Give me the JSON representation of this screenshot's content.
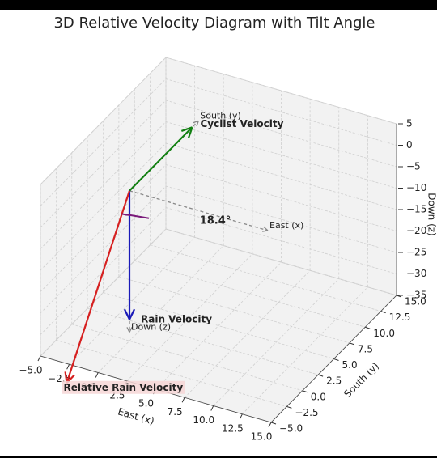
{
  "chart_data": {
    "type": "vector3d",
    "title": "3D Relative Velocity Diagram with Tilt Angle",
    "xlabel": "East (x)",
    "ylabel": "South (y)",
    "zlabel": "Down (z)",
    "xlim": [
      -5,
      15
    ],
    "ylim": [
      -5,
      15
    ],
    "zlim": [
      -35,
      5
    ],
    "xticks": [
      {
        "value": -5,
        "label": "−5.0"
      },
      {
        "value": -2.5,
        "label": "−2.5"
      },
      {
        "value": 0,
        "label": "0.0"
      },
      {
        "value": 2.5,
        "label": "2.5"
      },
      {
        "value": 5,
        "label": "5.0"
      },
      {
        "value": 7.5,
        "label": "7.5"
      },
      {
        "value": 10,
        "label": "10.0"
      },
      {
        "value": 12.5,
        "label": "12.5"
      },
      {
        "value": 15,
        "label": "15.0"
      }
    ],
    "yticks": [
      {
        "value": -5,
        "label": "−5.0"
      },
      {
        "value": -2.5,
        "label": "−2.5"
      },
      {
        "value": 0,
        "label": "0.0"
      },
      {
        "value": 2.5,
        "label": "2.5"
      },
      {
        "value": 5,
        "label": "5.0"
      },
      {
        "value": 7.5,
        "label": "7.5"
      },
      {
        "value": 10,
        "label": "10.0"
      },
      {
        "value": 12.5,
        "label": "12.5"
      },
      {
        "value": 15,
        "label": "15.0"
      }
    ],
    "zticks": [
      {
        "value": -35,
        "label": "−35"
      },
      {
        "value": -30,
        "label": "−30"
      },
      {
        "value": -25,
        "label": "−25"
      },
      {
        "value": -20,
        "label": "−20"
      },
      {
        "value": -15,
        "label": "−15"
      },
      {
        "value": -10,
        "label": "−10"
      },
      {
        "value": -5,
        "label": "−5"
      },
      0,
      5
    ],
    "grid": true,
    "origin": [
      0,
      0,
      0
    ],
    "reference_axes": [
      {
        "name": "South (y)",
        "end": [
          0,
          11,
          0
        ]
      },
      {
        "name": "East (x)",
        "end": [
          12,
          0,
          0
        ]
      },
      {
        "name": "Down (z)",
        "end": [
          0,
          0,
          -33
        ]
      }
    ],
    "vectors": [
      {
        "name": "Cyclist Velocity",
        "color": "#138013",
        "components": [
          0,
          10,
          0
        ]
      },
      {
        "name": "Rain Velocity",
        "color": "#1a1ab8",
        "components": [
          0,
          0,
          -30
        ]
      },
      {
        "name": "Relative Rain Velocity",
        "color": "#d62020",
        "components": [
          0,
          -10,
          -30
        ]
      }
    ],
    "angle_label": "18.4°",
    "angle_color": "#7a1a7a"
  }
}
